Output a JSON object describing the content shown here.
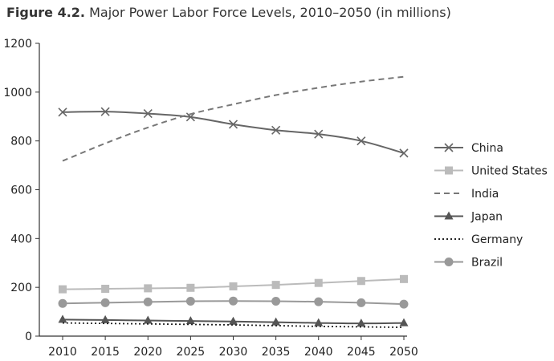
{
  "chart_data": {
    "type": "line",
    "title_prefix": "Figure 4.2.",
    "title": "Major Power Labor Force Levels, 2010–2050 (in millions)",
    "x": [
      2010,
      2015,
      2020,
      2025,
      2030,
      2035,
      2040,
      2045,
      2050
    ],
    "ylim": [
      0,
      1200
    ],
    "yticks": [
      0,
      200,
      400,
      600,
      800,
      1000,
      1200
    ],
    "grid": false,
    "legend_position": "right",
    "series": [
      {
        "name": "China",
        "values": [
          918,
          920,
          912,
          898,
          868,
          844,
          828,
          800,
          750
        ],
        "color": "#666666",
        "style": "solid",
        "marker": "x"
      },
      {
        "name": "United States",
        "values": [
          192,
          194,
          196,
          198,
          204,
          210,
          218,
          226,
          234
        ],
        "color": "#bbbbbb",
        "style": "solid",
        "marker": "square"
      },
      {
        "name": "India",
        "values": [
          718,
          790,
          855,
          910,
          950,
          988,
          1018,
          1043,
          1063
        ],
        "color": "#777777",
        "style": "dashed",
        "marker": "none"
      },
      {
        "name": "Japan",
        "values": [
          68,
          66,
          64,
          62,
          60,
          57,
          54,
          52,
          54
        ],
        "color": "#555555",
        "style": "solid",
        "marker": "triangle"
      },
      {
        "name": "Germany",
        "values": [
          54,
          52,
          50,
          48,
          46,
          43,
          40,
          38,
          36
        ],
        "color": "#222222",
        "style": "dotted",
        "marker": "none"
      },
      {
        "name": "Brazil",
        "values": [
          134,
          137,
          140,
          143,
          144,
          143,
          141,
          137,
          131
        ],
        "color": "#999999",
        "style": "solid",
        "marker": "circle"
      }
    ]
  }
}
